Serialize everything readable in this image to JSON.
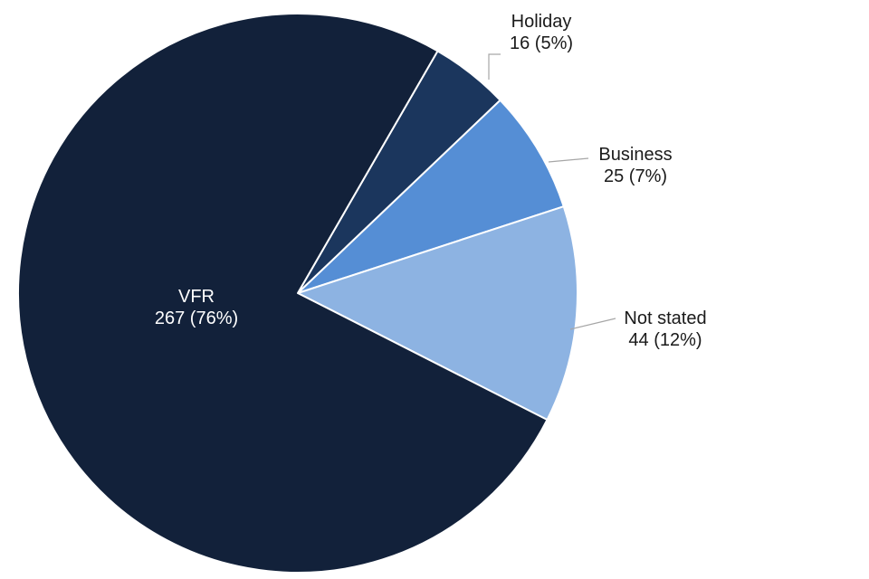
{
  "chart_data": {
    "type": "pie",
    "title": "",
    "slices": [
      {
        "name": "Holiday",
        "value": 16,
        "percent_label": "16 (5%)",
        "color": "#1b365d",
        "label_color": "#1a1a1a"
      },
      {
        "name": "Business",
        "value": 25,
        "percent_label": "25 (7%)",
        "color": "#558ed5",
        "label_color": "#1a1a1a"
      },
      {
        "name": "Not stated",
        "value": 44,
        "percent_label": "44 (12%)",
        "color": "#8db3e2",
        "label_color": "#1a1a1a"
      },
      {
        "name": "VFR",
        "value": 267,
        "percent_label": "267 (76%)",
        "color": "#12213a",
        "label_color": "#ffffff"
      }
    ],
    "start_angle_deg": 30,
    "direction": "clockwise",
    "leader_line_color": "#a6a6a6",
    "slice_border_color": "#ffffff"
  }
}
